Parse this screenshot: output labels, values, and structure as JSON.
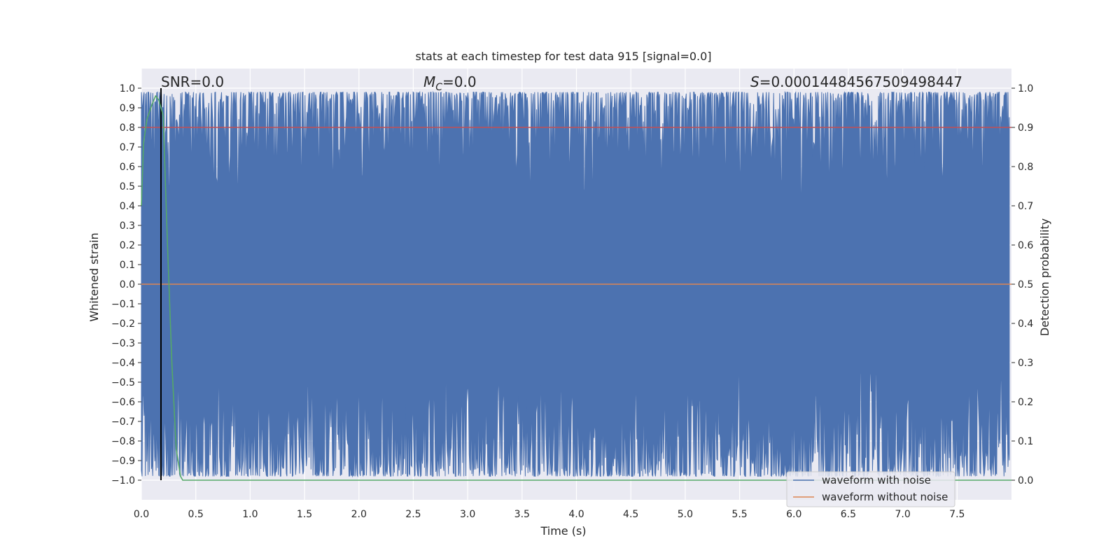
{
  "chart_data": {
    "type": "line",
    "title": "stats at each timestep for test data 915 [signal=0.0]",
    "xlabel": "Time (s)",
    "ylabel": "Whitened strain",
    "y2label": "Detection probability",
    "xlim": [
      0.0,
      8.0
    ],
    "ylim": [
      -1.1,
      1.1
    ],
    "y2lim": [
      -0.05,
      1.05
    ],
    "xticks": [
      0.0,
      0.5,
      1.0,
      1.5,
      2.0,
      2.5,
      3.0,
      3.5,
      4.0,
      4.5,
      5.0,
      5.5,
      6.0,
      6.5,
      7.0,
      7.5
    ],
    "yticks": [
      -1.0,
      -0.9,
      -0.8,
      -0.7,
      -0.6,
      -0.5,
      -0.4,
      -0.3,
      -0.2,
      -0.1,
      0.0,
      0.1,
      0.2,
      0.3,
      0.4,
      0.5,
      0.6,
      0.7,
      0.8,
      0.9,
      1.0
    ],
    "y2ticks": [
      0.0,
      0.1,
      0.2,
      0.3,
      0.4,
      0.5,
      0.6,
      0.7,
      0.8,
      0.9,
      1.0
    ],
    "grid": true,
    "legend": "lower right",
    "annotations": {
      "snr": "SNR=0.0",
      "mc_symbol": "M",
      "mc_sub": "C",
      "mc_value": "=0.0",
      "s_symbol": "S",
      "s_value": "=0.00014484567509498447"
    },
    "series": [
      {
        "name": "waveform with noise",
        "axis": "left",
        "color": "#4c72b0",
        "description_values": "dense whitened noise spanning roughly -1.0 to 1.0 across 0-8 s"
      },
      {
        "name": "waveform without noise",
        "axis": "left",
        "color": "#dd8452",
        "values_constant": 0.0
      },
      {
        "axis": "right",
        "color": "#55a868",
        "x": [
          0.0,
          0.02,
          0.05,
          0.1,
          0.13,
          0.16,
          0.2,
          0.24,
          0.28,
          0.32,
          0.36,
          0.38,
          0.5,
          8.0
        ],
        "values": [
          0.7,
          0.86,
          0.92,
          0.96,
          0.98,
          0.97,
          0.93,
          0.6,
          0.3,
          0.08,
          0.01,
          0.0,
          0.0,
          0.0
        ]
      }
    ],
    "threshold_line": {
      "axis": "right",
      "value": 0.9,
      "color": "#c44e52"
    },
    "vertical_marker": {
      "x": 0.18,
      "color": "#000000"
    }
  },
  "colors": {
    "plot_background": "#eaeaf2",
    "grid": "#ffffff",
    "text": "#262626"
  }
}
